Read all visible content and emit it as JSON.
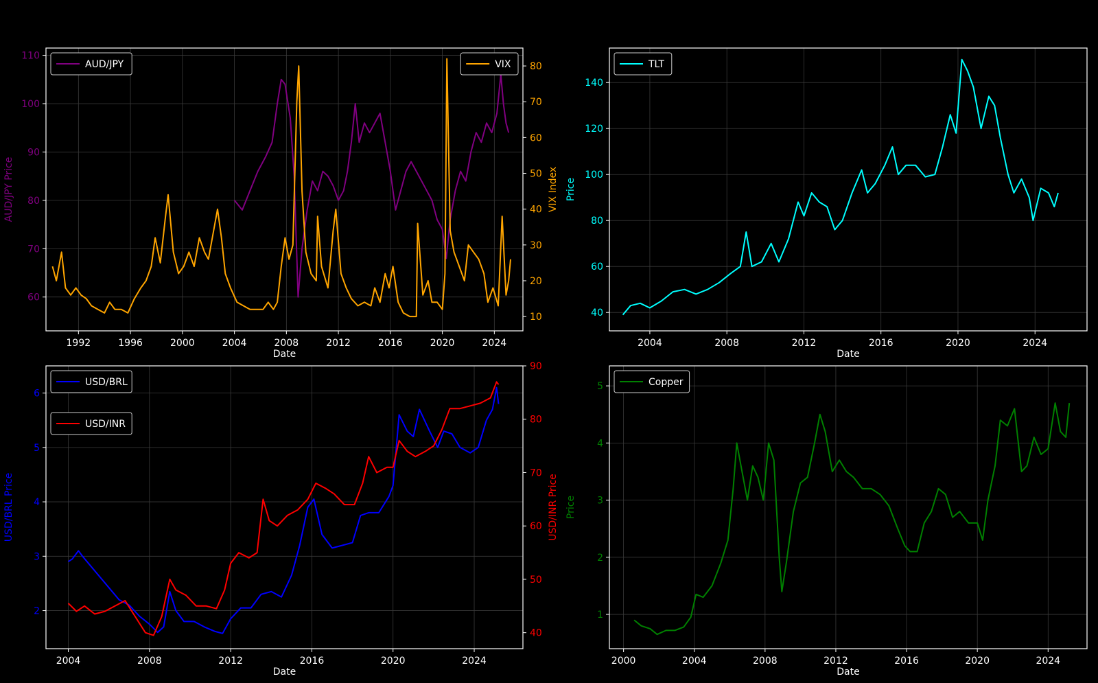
{
  "figure": {
    "background": "#000000",
    "axis_text_color": "#ffffff",
    "grid_color": "#3a3a3a"
  },
  "chart_data": [
    {
      "id": "audjpy_vix",
      "type": "line",
      "title": "",
      "xlabel": "Date",
      "xlim": [
        1989.5,
        2026.2
      ],
      "xticks": [
        1992,
        1996,
        2000,
        2004,
        2008,
        2012,
        2016,
        2020,
        2024
      ],
      "grid": true,
      "left_axis": {
        "label": "AUD/JPY Price",
        "color": "#800080",
        "ylim": [
          53,
          111.5
        ],
        "ticks": [
          60,
          70,
          80,
          90,
          100,
          110
        ]
      },
      "right_axis": {
        "label": "VIX Index",
        "color": "#ffa500",
        "ylim": [
          6,
          85
        ],
        "ticks": [
          10,
          20,
          30,
          40,
          50,
          60,
          70,
          80
        ]
      },
      "legend_left": {
        "position": "top-left",
        "entries": [
          "AUD/JPY"
        ]
      },
      "legend_right": {
        "position": "top-right",
        "entries": [
          "VIX"
        ]
      },
      "series": [
        {
          "name": "AUD/JPY",
          "axis": "left",
          "color": "#800080",
          "x": [
            2004.0,
            2004.6,
            2005.2,
            2005.8,
            2006.4,
            2006.9,
            2007.3,
            2007.6,
            2007.9,
            2008.3,
            2008.6,
            2008.9,
            2009.2,
            2009.6,
            2010.0,
            2010.4,
            2010.8,
            2011.2,
            2011.6,
            2012.0,
            2012.4,
            2012.7,
            2013.0,
            2013.3,
            2013.6,
            2014.0,
            2014.4,
            2014.8,
            2015.2,
            2015.6,
            2016.0,
            2016.4,
            2016.8,
            2017.2,
            2017.6,
            2018.0,
            2018.4,
            2018.8,
            2019.2,
            2019.6,
            2020.0,
            2020.3,
            2020.6,
            2021.0,
            2021.4,
            2021.8,
            2022.2,
            2022.6,
            2023.0,
            2023.4,
            2023.8,
            2024.2,
            2024.5,
            2024.7,
            2024.9,
            2025.1
          ],
          "y": [
            80,
            78,
            82,
            86,
            89,
            92,
            100,
            105,
            104,
            97,
            85,
            60,
            70,
            78,
            84,
            82,
            86,
            85,
            83,
            80,
            82,
            86,
            92,
            100,
            92,
            96,
            94,
            96,
            98,
            92,
            86,
            78,
            82,
            86,
            88,
            86,
            84,
            82,
            80,
            76,
            74,
            68,
            76,
            82,
            86,
            84,
            90,
            94,
            92,
            96,
            94,
            98,
            106,
            100,
            96,
            94
          ]
        },
        {
          "name": "VIX",
          "axis": "right",
          "color": "#ffa500",
          "x": [
            1990.0,
            1990.3,
            1990.7,
            1991.0,
            1991.4,
            1991.8,
            1992.2,
            1992.6,
            1993.0,
            1993.5,
            1994.0,
            1994.4,
            1994.8,
            1995.3,
            1995.8,
            1996.3,
            1996.8,
            1997.2,
            1997.6,
            1997.9,
            1998.3,
            1998.7,
            1998.9,
            1999.3,
            1999.7,
            2000.1,
            2000.5,
            2000.9,
            2001.3,
            2001.7,
            2002.0,
            2002.4,
            2002.7,
            2003.0,
            2003.3,
            2003.7,
            2004.2,
            2004.7,
            2005.2,
            2005.7,
            2006.2,
            2006.6,
            2007.0,
            2007.3,
            2007.6,
            2007.9,
            2008.2,
            2008.5,
            2008.8,
            2008.95,
            2009.2,
            2009.5,
            2009.9,
            2010.3,
            2010.4,
            2010.7,
            2011.2,
            2011.6,
            2011.8,
            2012.2,
            2012.6,
            2013.0,
            2013.5,
            2014.0,
            2014.5,
            2014.8,
            2015.2,
            2015.6,
            2015.9,
            2016.2,
            2016.6,
            2017.0,
            2017.5,
            2018.0,
            2018.1,
            2018.5,
            2018.9,
            2019.2,
            2019.6,
            2020.0,
            2020.2,
            2020.35,
            2020.6,
            2020.9,
            2021.3,
            2021.7,
            2022.0,
            2022.4,
            2022.8,
            2023.2,
            2023.5,
            2023.9,
            2024.3,
            2024.6,
            2024.9,
            2025.1,
            2025.25
          ],
          "y": [
            24,
            20,
            28,
            18,
            16,
            18,
            16,
            15,
            13,
            12,
            11,
            14,
            12,
            12,
            11,
            15,
            18,
            20,
            24,
            32,
            25,
            38,
            44,
            28,
            22,
            24,
            28,
            24,
            32,
            28,
            26,
            34,
            40,
            32,
            22,
            18,
            14,
            13,
            12,
            12,
            12,
            14,
            12,
            14,
            24,
            32,
            26,
            30,
            70,
            80,
            45,
            28,
            22,
            20,
            38,
            24,
            18,
            34,
            40,
            22,
            18,
            15,
            13,
            14,
            13,
            18,
            14,
            22,
            18,
            24,
            14,
            11,
            10,
            10,
            36,
            16,
            20,
            14,
            14,
            12,
            22,
            82,
            34,
            28,
            24,
            20,
            30,
            28,
            26,
            22,
            14,
            18,
            13,
            38,
            16,
            20,
            26
          ]
        }
      ]
    },
    {
      "id": "tlt",
      "type": "line",
      "title": "",
      "xlabel": "Date",
      "ylabel": "Price",
      "ylabel_color": "#00ffff",
      "tick_color": "#00ffff",
      "xlim": [
        2001.9,
        2026.7
      ],
      "xticks": [
        2004,
        2008,
        2012,
        2016,
        2020,
        2024
      ],
      "ylim": [
        32,
        155
      ],
      "yticks": [
        40,
        60,
        80,
        100,
        120,
        140
      ],
      "grid": true,
      "legend": {
        "position": "top-left",
        "entries": [
          "TLT"
        ]
      },
      "series": [
        {
          "name": "TLT",
          "color": "#00ffff",
          "x": [
            2002.6,
            2003.0,
            2003.5,
            2004.0,
            2004.6,
            2005.2,
            2005.8,
            2006.4,
            2007.0,
            2007.6,
            2008.2,
            2008.7,
            2009.0,
            2009.3,
            2009.8,
            2010.3,
            2010.7,
            2011.2,
            2011.7,
            2012.0,
            2012.4,
            2012.8,
            2013.2,
            2013.6,
            2014.0,
            2014.5,
            2015.0,
            2015.3,
            2015.7,
            2016.2,
            2016.6,
            2016.9,
            2017.3,
            2017.8,
            2018.3,
            2018.8,
            2019.2,
            2019.6,
            2019.9,
            2020.2,
            2020.5,
            2020.8,
            2021.2,
            2021.6,
            2021.9,
            2022.2,
            2022.6,
            2022.9,
            2023.3,
            2023.7,
            2023.9,
            2024.3,
            2024.7,
            2025.0,
            2025.2
          ],
          "y": [
            39,
            43,
            44,
            42,
            45,
            49,
            50,
            48,
            50,
            53,
            57,
            60,
            75,
            60,
            62,
            70,
            62,
            72,
            88,
            82,
            92,
            88,
            86,
            76,
            80,
            92,
            102,
            92,
            96,
            104,
            112,
            100,
            104,
            104,
            99,
            100,
            112,
            126,
            118,
            150,
            145,
            138,
            120,
            134,
            130,
            116,
            100,
            92,
            98,
            90,
            80,
            94,
            92,
            86,
            92
          ]
        }
      ]
    },
    {
      "id": "usdbrl_usdinr",
      "type": "line",
      "title": "",
      "xlabel": "Date",
      "xlim": [
        2002.9,
        2026.4
      ],
      "xticks": [
        2004,
        2008,
        2012,
        2016,
        2020,
        2024
      ],
      "grid": true,
      "left_axis": {
        "label": "USD/BRL Price",
        "color": "#0000ff",
        "ylim": [
          1.3,
          6.5
        ],
        "ticks": [
          2,
          3,
          4,
          5,
          6
        ]
      },
      "right_axis": {
        "label": "USD/INR Price",
        "color": "#ff0000",
        "ylim": [
          37,
          90
        ],
        "ticks": [
          40,
          50,
          60,
          70,
          80,
          90
        ]
      },
      "legend_left": {
        "position": "top-left",
        "entries": [
          "USD/BRL"
        ]
      },
      "legend_right": {
        "position": "upper-left",
        "entries": [
          "USD/INR"
        ]
      },
      "series": [
        {
          "name": "USD/BRL",
          "axis": "left",
          "color": "#0000ff",
          "x": [
            2004.0,
            2004.2,
            2004.5,
            2004.7,
            2006.5,
            2007.0,
            2007.5,
            2008.0,
            2008.4,
            2008.7,
            2009.0,
            2009.3,
            2009.7,
            2010.2,
            2010.7,
            2011.2,
            2011.6,
            2012.0,
            2012.5,
            2013.0,
            2013.5,
            2014.0,
            2014.5,
            2015.0,
            2015.4,
            2015.8,
            2016.1,
            2016.5,
            2017.0,
            2017.5,
            2018.0,
            2018.4,
            2018.8,
            2019.3,
            2019.8,
            2020.0,
            2020.3,
            2020.7,
            2021.0,
            2021.3,
            2021.8,
            2022.2,
            2022.5,
            2022.9,
            2023.3,
            2023.8,
            2024.2,
            2024.6,
            2024.9,
            2025.1,
            2025.2
          ],
          "y": [
            2.9,
            2.95,
            3.1,
            3.0,
            2.2,
            2.1,
            1.9,
            1.75,
            1.6,
            1.7,
            2.35,
            2.0,
            1.8,
            1.8,
            1.7,
            1.62,
            1.58,
            1.85,
            2.05,
            2.05,
            2.3,
            2.35,
            2.25,
            2.65,
            3.2,
            3.9,
            4.05,
            3.4,
            3.15,
            3.2,
            3.25,
            3.75,
            3.8,
            3.8,
            4.1,
            4.3,
            5.6,
            5.3,
            5.2,
            5.7,
            5.3,
            5.0,
            5.3,
            5.25,
            5.0,
            4.9,
            5.0,
            5.5,
            5.7,
            6.1,
            5.8
          ]
        },
        {
          "name": "USD/INR",
          "axis": "right",
          "color": "#ff0000",
          "x": [
            2004.0,
            2004.4,
            2004.8,
            2005.3,
            2005.8,
            2006.3,
            2006.8,
            2007.3,
            2007.8,
            2008.2,
            2008.6,
            2009.0,
            2009.3,
            2009.8,
            2010.3,
            2010.8,
            2011.3,
            2011.7,
            2012.0,
            2012.4,
            2012.9,
            2013.3,
            2013.6,
            2013.9,
            2014.3,
            2014.8,
            2015.3,
            2015.8,
            2016.2,
            2016.7,
            2017.1,
            2017.6,
            2018.1,
            2018.5,
            2018.8,
            2019.2,
            2019.7,
            2020.0,
            2020.3,
            2020.7,
            2021.1,
            2021.6,
            2022.0,
            2022.4,
            2022.8,
            2023.3,
            2023.8,
            2024.3,
            2024.8,
            2025.1,
            2025.2
          ],
          "y": [
            45.5,
            44,
            45,
            43.5,
            44,
            45,
            46,
            43,
            40,
            39.5,
            43,
            50,
            48,
            47,
            45,
            45,
            44.5,
            48,
            53,
            55,
            54,
            55,
            65,
            61,
            60,
            62,
            63,
            65,
            68,
            67,
            66,
            64,
            64,
            68,
            73,
            70,
            71,
            71,
            76,
            74,
            73,
            74,
            75,
            78,
            82,
            82,
            82.5,
            83,
            84,
            87,
            86.5
          ]
        }
      ]
    },
    {
      "id": "copper",
      "type": "line",
      "title": "",
      "xlabel": "Date",
      "ylabel": "Price",
      "ylabel_color": "#008000",
      "tick_color": "#008000",
      "xlim": [
        1999.2,
        2026.2
      ],
      "xticks": [
        2000,
        2004,
        2008,
        2012,
        2016,
        2020,
        2024
      ],
      "ylim": [
        0.4,
        5.35
      ],
      "yticks": [
        1,
        2,
        3,
        4,
        5
      ],
      "grid": true,
      "legend": {
        "position": "top-left",
        "entries": [
          "Copper"
        ]
      },
      "series": [
        {
          "name": "Copper",
          "color": "#008000",
          "x": [
            2000.6,
            2001.0,
            2001.5,
            2001.9,
            2002.4,
            2002.9,
            2003.4,
            2003.8,
            2004.1,
            2004.5,
            2005.0,
            2005.5,
            2005.9,
            2006.2,
            2006.4,
            2006.7,
            2007.0,
            2007.3,
            2007.6,
            2007.9,
            2008.2,
            2008.5,
            2008.8,
            2008.95,
            2009.2,
            2009.6,
            2010.0,
            2010.4,
            2010.8,
            2011.1,
            2011.4,
            2011.8,
            2012.2,
            2012.6,
            2013.0,
            2013.5,
            2014.0,
            2014.5,
            2015.0,
            2015.5,
            2015.9,
            2016.2,
            2016.6,
            2017.0,
            2017.4,
            2017.8,
            2018.2,
            2018.6,
            2019.0,
            2019.5,
            2020.0,
            2020.3,
            2020.6,
            2021.0,
            2021.3,
            2021.7,
            2022.1,
            2022.5,
            2022.8,
            2023.2,
            2023.6,
            2024.0,
            2024.4,
            2024.7,
            2025.0,
            2025.2
          ],
          "y": [
            0.9,
            0.8,
            0.75,
            0.65,
            0.72,
            0.72,
            0.78,
            0.95,
            1.35,
            1.3,
            1.5,
            1.9,
            2.3,
            3.2,
            4.0,
            3.5,
            3.0,
            3.6,
            3.4,
            3.0,
            4.0,
            3.7,
            2.0,
            1.4,
            1.9,
            2.8,
            3.3,
            3.4,
            4.0,
            4.5,
            4.2,
            3.5,
            3.7,
            3.5,
            3.4,
            3.2,
            3.2,
            3.1,
            2.9,
            2.5,
            2.2,
            2.1,
            2.1,
            2.6,
            2.8,
            3.2,
            3.1,
            2.7,
            2.8,
            2.6,
            2.6,
            2.3,
            3.0,
            3.6,
            4.4,
            4.3,
            4.6,
            3.5,
            3.6,
            4.1,
            3.8,
            3.9,
            4.7,
            4.2,
            4.1,
            4.7
          ]
        }
      ]
    }
  ]
}
